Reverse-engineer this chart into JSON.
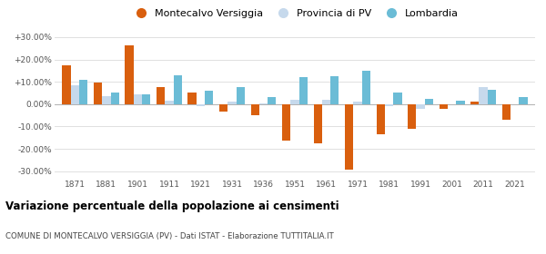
{
  "years": [
    1871,
    1881,
    1901,
    1911,
    1921,
    1931,
    1936,
    1951,
    1961,
    1971,
    1981,
    1991,
    2001,
    2011,
    2021
  ],
  "montecalvo": [
    17.5,
    9.5,
    26.5,
    7.5,
    5.0,
    -3.5,
    -5.0,
    -16.5,
    -17.5,
    -29.5,
    -13.5,
    -11.0,
    -2.0,
    1.0,
    -7.0
  ],
  "provincia_pv": [
    8.5,
    3.5,
    4.5,
    1.5,
    -1.0,
    1.0,
    0.5,
    2.0,
    2.0,
    1.0,
    -1.0,
    -2.0,
    0.0,
    7.5,
    0.0
  ],
  "lombardia": [
    11.0,
    5.0,
    4.5,
    13.0,
    6.0,
    7.5,
    3.0,
    12.0,
    12.5,
    15.0,
    5.0,
    2.5,
    1.5,
    6.5,
    3.0
  ],
  "color_montecalvo": "#d95f0e",
  "color_provincia": "#c6d9ec",
  "color_lombardia": "#6bbcd6",
  "title": "Variazione percentuale della popolazione ai censimenti",
  "subtitle": "COMUNE DI MONTECALVO VERSIGGIA (PV) - Dati ISTAT - Elaborazione TUTTITALIA.IT",
  "legend_labels": [
    "Montecalvo Versiggia",
    "Provincia di PV",
    "Lombardia"
  ],
  "yticks": [
    -30,
    -20,
    -10,
    0,
    10,
    20,
    30
  ],
  "ytick_labels": [
    "-30.00%",
    "-20.00%",
    "-10.00%",
    "0.00%",
    "+10.00%",
    "+20.00%",
    "+30.00%"
  ],
  "ylim": [
    -33,
    33
  ],
  "bar_width": 0.27
}
